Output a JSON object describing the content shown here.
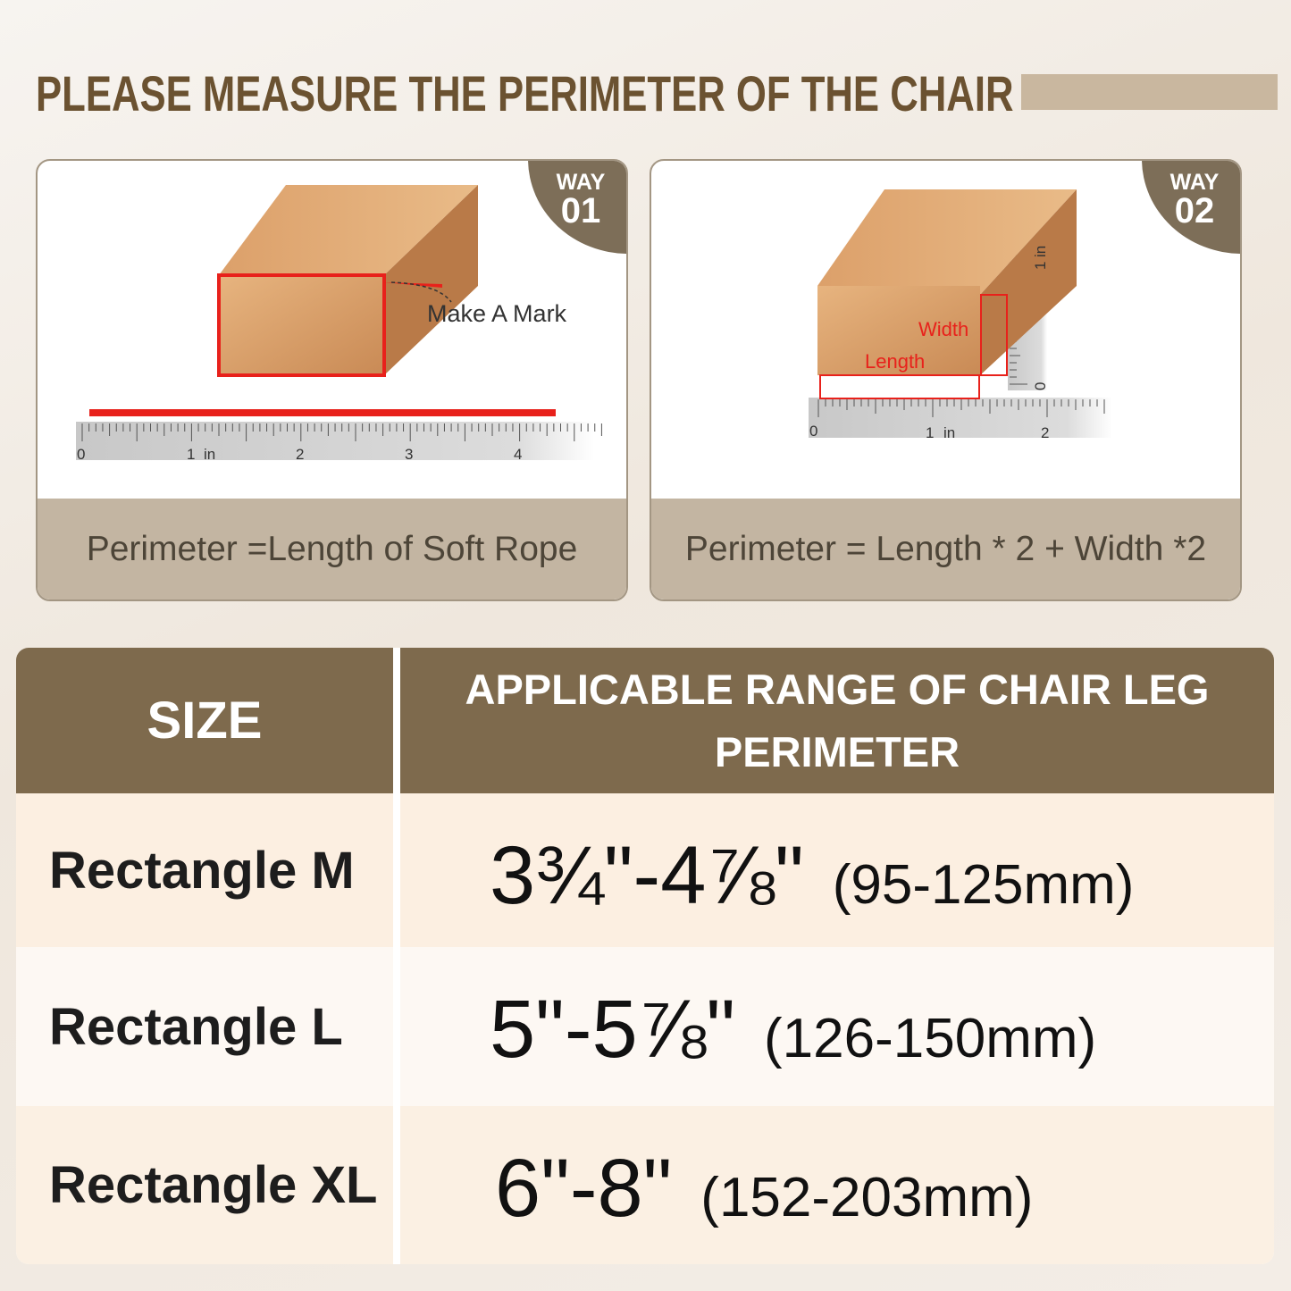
{
  "header": {
    "title": "PLEASE MEASURE THE PERIMETER OF THE CHAIR"
  },
  "ways": [
    {
      "badge_word": "WAY",
      "badge_number": "01",
      "annotation": "Make A Mark",
      "ruler_labels": [
        "0",
        "1",
        "in",
        "2",
        "3",
        "4"
      ],
      "caption": "Perimeter =Length of Soft Rope"
    },
    {
      "badge_word": "WAY",
      "badge_number": "02",
      "annotation_width": "Width",
      "annotation_length": "Length",
      "ruler_labels": [
        "0",
        "1",
        "in",
        "2"
      ],
      "vertical_ruler_labels": [
        "0",
        "1",
        "in"
      ],
      "caption": "Perimeter = Length * 2 + Width *2"
    }
  ],
  "table": {
    "header": [
      "SIZE",
      "APPLICABLE RANGE OF CHAIR LEG PERIMETER"
    ],
    "rows": [
      [
        "Rectangle M",
        "3¾\"-4⅞\"",
        "(95-125mm)"
      ],
      [
        "Rectangle L",
        "5\"-5⅞\"",
        "(126-150mm)"
      ],
      [
        "Rectangle XL",
        "6\"-8\"",
        "(152-203mm)"
      ]
    ]
  }
}
